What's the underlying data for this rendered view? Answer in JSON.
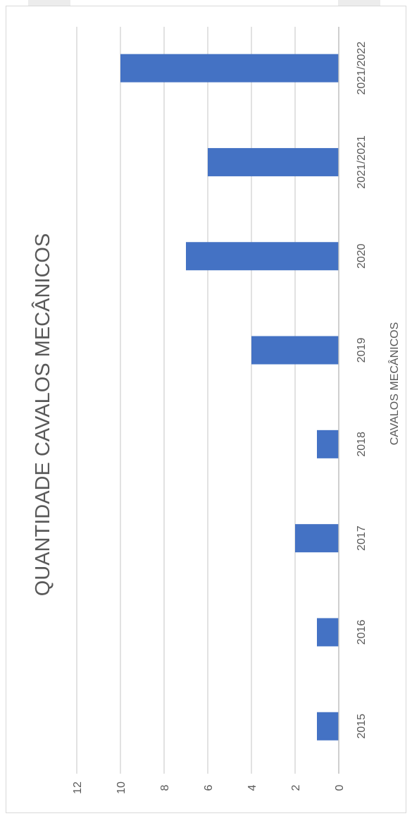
{
  "chart_data": {
    "type": "bar",
    "title": "QUANTIDADE CAVALOS MECÂNICOS",
    "xlabel": "CAVALOS MECÂNICOS",
    "ylabel": "",
    "categories": [
      "2015",
      "2016",
      "2017",
      "2018",
      "2019",
      "2020",
      "2021/2021",
      "2021/2022"
    ],
    "values": [
      1,
      1,
      2,
      1,
      4,
      7,
      6,
      10
    ],
    "ylim": [
      0,
      12
    ],
    "yticks": [
      0,
      2,
      4,
      6,
      8,
      10,
      12
    ],
    "grid": true,
    "legend": "none",
    "orientation": "rotated-90-clockwise",
    "bar_color": "#4472c4",
    "gridline_color": "#d9d9d9",
    "text_color": "#595959"
  }
}
